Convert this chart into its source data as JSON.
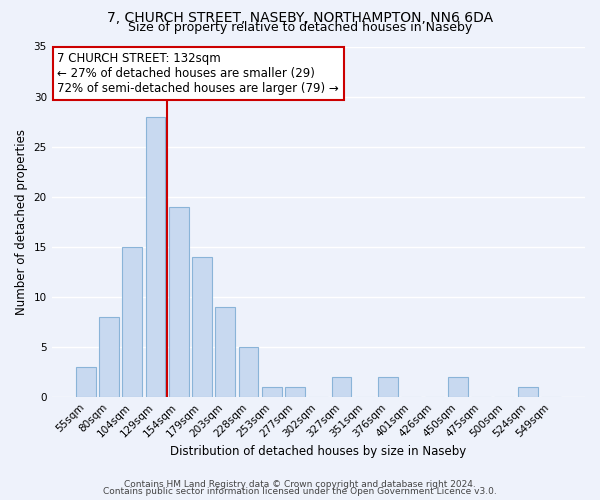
{
  "title1": "7, CHURCH STREET, NASEBY, NORTHAMPTON, NN6 6DA",
  "title2": "Size of property relative to detached houses in Naseby",
  "xlabel": "Distribution of detached houses by size in Naseby",
  "ylabel": "Number of detached properties",
  "categories": [
    "55sqm",
    "80sqm",
    "104sqm",
    "129sqm",
    "154sqm",
    "179sqm",
    "203sqm",
    "228sqm",
    "253sqm",
    "277sqm",
    "302sqm",
    "327sqm",
    "351sqm",
    "376sqm",
    "401sqm",
    "426sqm",
    "450sqm",
    "475sqm",
    "500sqm",
    "524sqm",
    "549sqm"
  ],
  "values": [
    3,
    8,
    15,
    28,
    19,
    14,
    9,
    5,
    1,
    1,
    0,
    2,
    0,
    2,
    0,
    0,
    2,
    0,
    0,
    1,
    0
  ],
  "bar_color": "#c8d9f0",
  "bar_edge_color": "#8ab4d8",
  "bg_color": "#eef2fb",
  "grid_color": "#ffffff",
  "annotation_line1": "7 CHURCH STREET: 132sqm",
  "annotation_line2": "← 27% of detached houses are smaller (29)",
  "annotation_line3": "72% of semi-detached houses are larger (79) →",
  "annotation_box_color": "#ffffff",
  "annotation_box_edge_color": "#cc0000",
  "vline_color": "#cc0000",
  "vline_x": 3.5,
  "ylim": [
    0,
    35
  ],
  "yticks": [
    0,
    5,
    10,
    15,
    20,
    25,
    30,
    35
  ],
  "footer1": "Contains HM Land Registry data © Crown copyright and database right 2024.",
  "footer2": "Contains public sector information licensed under the Open Government Licence v3.0.",
  "title1_fontsize": 10,
  "title2_fontsize": 9,
  "axis_fontsize": 8.5,
  "tick_fontsize": 7.5,
  "annot_fontsize": 8.5,
  "footer_fontsize": 6.5
}
